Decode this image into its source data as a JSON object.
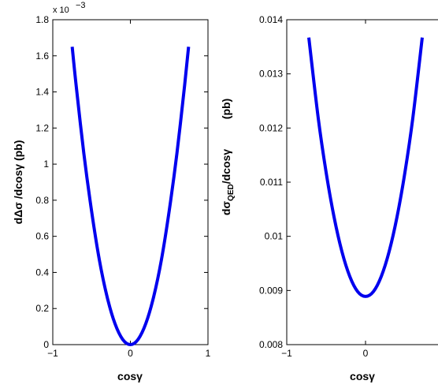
{
  "chart_data": [
    {
      "type": "line",
      "x": [
        -0.75,
        -0.7,
        -0.6,
        -0.5,
        -0.4,
        -0.3,
        -0.2,
        -0.1,
        0,
        0.1,
        0.2,
        0.3,
        0.4,
        0.5,
        0.6,
        0.7,
        0.75
      ],
      "series": [
        {
          "values": [
            0.00165,
            0.00144,
            0.00106,
            0.00074,
            0.00047,
            0.000265,
            0.000118,
            2.94e-05,
            0,
            2.94e-05,
            0.000118,
            0.000265,
            0.00047,
            0.00074,
            0.00106,
            0.00144,
            0.00165
          ],
          "color": "#0000ee"
        }
      ],
      "xlim": [
        -1,
        1
      ],
      "ylim": [
        0,
        0.0018
      ],
      "x_ticks": [
        "−1",
        "0",
        "1"
      ],
      "y_ticks": [
        "0",
        "0.2",
        "0.4",
        "0.6",
        "0.8",
        "1",
        "1.2",
        "1.4",
        "1.6",
        "1.8"
      ],
      "y_exponent_prefix": "x 10",
      "y_exponent": "−3",
      "xlabel": "cosγ",
      "ylabel": "dΔσ /dcosγ   (pb)",
      "grid": false
    },
    {
      "type": "line",
      "x": [
        -0.72,
        -0.6,
        -0.5,
        -0.4,
        -0.3,
        -0.2,
        -0.1,
        0,
        0.1,
        0.2,
        0.3,
        0.4,
        0.5,
        0.6,
        0.72
      ],
      "series": [
        {
          "values": [
            0.01367,
            0.01218,
            0.01118,
            0.01036,
            0.00972,
            0.00926,
            0.00898,
            0.00889,
            0.00898,
            0.00926,
            0.00972,
            0.01036,
            0.01118,
            0.01218,
            0.01367
          ],
          "color": "#0000ee"
        }
      ],
      "xlim": [
        -1,
        1
      ],
      "ylim": [
        0.008,
        0.014
      ],
      "x_ticks": [
        "−1",
        "0"
      ],
      "y_ticks": [
        "0.008",
        "0.009",
        "0.01",
        "0.011",
        "0.012",
        "0.013",
        "0.014"
      ],
      "xlabel": "cosγ",
      "ylabel_main": "dσ",
      "ylabel_sub": "QED",
      "ylabel_rest": "/dcosγ",
      "ylabel_unit": "(pb)",
      "grid": false
    }
  ]
}
